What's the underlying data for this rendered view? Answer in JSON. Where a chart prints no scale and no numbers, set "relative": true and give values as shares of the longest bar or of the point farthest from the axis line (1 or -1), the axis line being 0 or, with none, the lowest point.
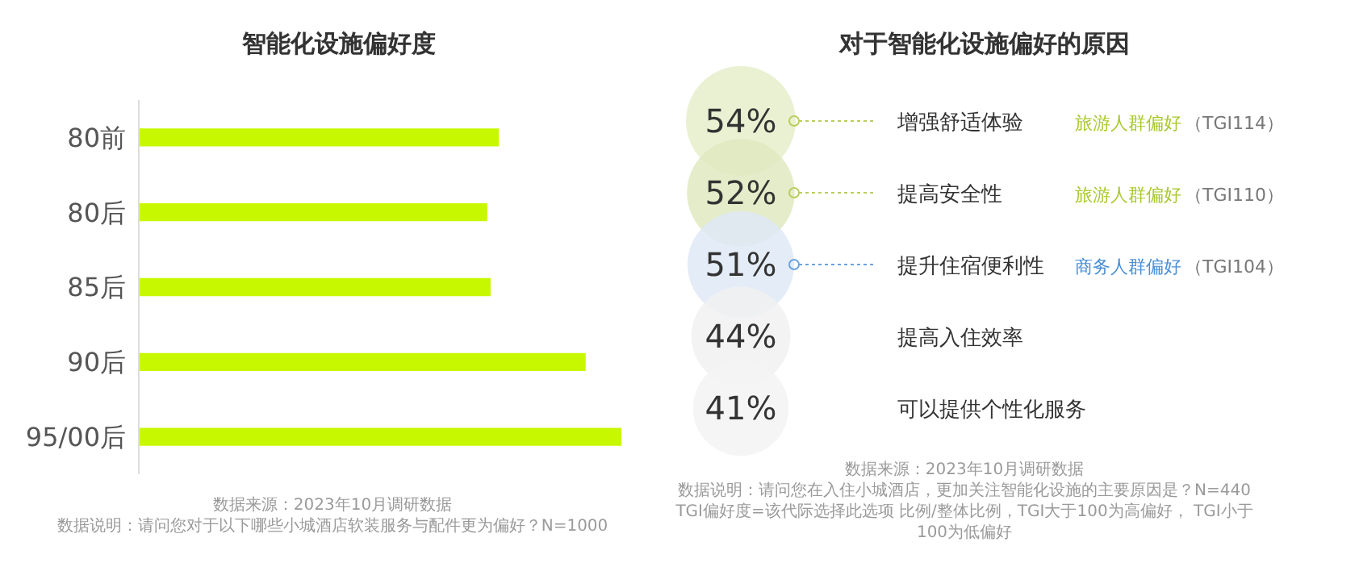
{
  "chart_data": [
    {
      "type": "bar",
      "orientation": "horizontal",
      "relative": true,
      "title": "智能化设施偏好度",
      "categories": [
        "80前",
        "80后",
        "85后",
        "90后",
        "95/00后"
      ],
      "values": [
        0.746,
        0.722,
        0.729,
        0.926,
        1
      ],
      "color": "#c8f800",
      "annotations": [
        "数据来源：2023年10月调研数据",
        "数据说明：请问您对于以下哪些小城酒店软装服务与配件更为偏好？N=1000"
      ]
    },
    {
      "type": "other",
      "title": "对于智能化设施偏好的原因",
      "categories": [
        "增强舒适体验",
        "提高安全性",
        "提升住宿便利性",
        "提高入住效率",
        "可以提供个性化服务"
      ],
      "values": [
        54,
        52,
        51,
        44,
        41
      ],
      "value_labels": [
        "54%",
        "52%",
        "51%",
        "44%",
        "41%"
      ],
      "colors": [
        "#e6eecb",
        "#dfe9bf",
        "#dfe9f6",
        "#f1f1f1",
        "#f3f3f3"
      ],
      "annotations": [
        {
          "text": "旅游人群偏好",
          "x": "增强舒适体验"
        },
        {
          "text": "（TGI114）",
          "x": "增强舒适体验"
        },
        {
          "text": "旅游人群偏好",
          "x": "提高安全性"
        },
        {
          "text": "（TGI110）",
          "x": "提高安全性"
        },
        {
          "text": "商务人群偏好",
          "x": "提升住宿便利性"
        },
        {
          "text": "（TGI104）",
          "x": "提升住宿便利性"
        },
        "数据来源：2023年10月调研数据",
        "数据说明：请问您在入住小城酒店，更加关注智能化设施的主要原因是？N=440",
        "TGI偏好度=该代际选择此选项 比例/整体比例，TGI大于100为高偏好， TGI小于100为低偏好"
      ]
    }
  ]
}
